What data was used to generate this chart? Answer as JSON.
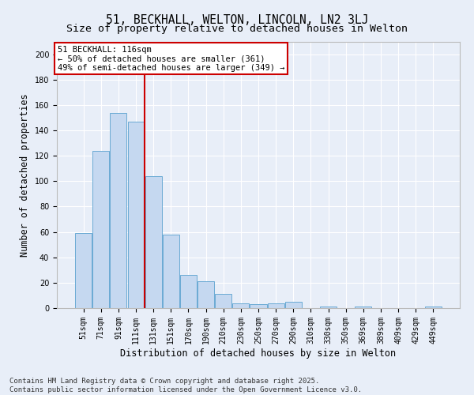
{
  "title": "51, BECKHALL, WELTON, LINCOLN, LN2 3LJ",
  "subtitle": "Size of property relative to detached houses in Welton",
  "xlabel": "Distribution of detached houses by size in Welton",
  "ylabel": "Number of detached properties",
  "categories": [
    "51sqm",
    "71sqm",
    "91sqm",
    "111sqm",
    "131sqm",
    "151sqm",
    "170sqm",
    "190sqm",
    "210sqm",
    "230sqm",
    "250sqm",
    "270sqm",
    "290sqm",
    "310sqm",
    "330sqm",
    "350sqm",
    "369sqm",
    "389sqm",
    "409sqm",
    "429sqm",
    "449sqm"
  ],
  "values": [
    59,
    124,
    154,
    147,
    104,
    58,
    26,
    21,
    11,
    4,
    3,
    4,
    5,
    0,
    1,
    0,
    1,
    0,
    0,
    0,
    1
  ],
  "bar_color": "#c5d8f0",
  "bar_edge_color": "#6aaad4",
  "vline_index": 3,
  "annotation_title": "51 BECKHALL: 116sqm",
  "annotation_line1": "← 50% of detached houses are smaller (361)",
  "annotation_line2": "49% of semi-detached houses are larger (349) →",
  "annotation_box_color": "#ffffff",
  "annotation_box_edge": "#cc0000",
  "vline_color": "#cc0000",
  "ylim": [
    0,
    210
  ],
  "yticks": [
    0,
    20,
    40,
    60,
    80,
    100,
    120,
    140,
    160,
    180,
    200
  ],
  "background_color": "#e8eef8",
  "grid_color": "#ffffff",
  "footer": "Contains HM Land Registry data © Crown copyright and database right 2025.\nContains public sector information licensed under the Open Government Licence v3.0.",
  "title_fontsize": 10.5,
  "subtitle_fontsize": 9.5,
  "axis_label_fontsize": 8.5,
  "tick_fontsize": 7,
  "footer_fontsize": 6.5,
  "annot_fontsize": 7.5
}
